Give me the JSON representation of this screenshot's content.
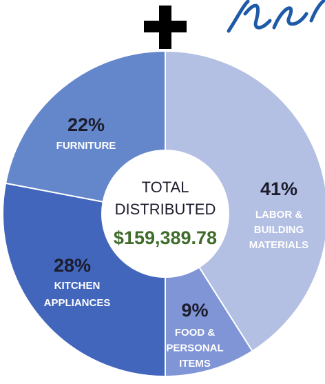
{
  "chart_data": {
    "type": "donut",
    "categories": [
      [
        "LABOR &",
        "BUILDING",
        "MATERIALS"
      ],
      [
        "FOOD &",
        "PERSONAL",
        "ITEMS"
      ],
      [
        "KITCHEN",
        "APPLIANCES"
      ],
      [
        "FURNITURE"
      ]
    ],
    "values": [
      41,
      9,
      28,
      22
    ],
    "value_labels": [
      "41%",
      "9%",
      "28%",
      "22%"
    ],
    "colors": [
      "#b3bfe3",
      "#7f95d6",
      "#4266bb",
      "#6486cb"
    ],
    "center_label": [
      "TOTAL",
      "DISTRIBUTED"
    ],
    "center_value": "$159,389.78"
  }
}
